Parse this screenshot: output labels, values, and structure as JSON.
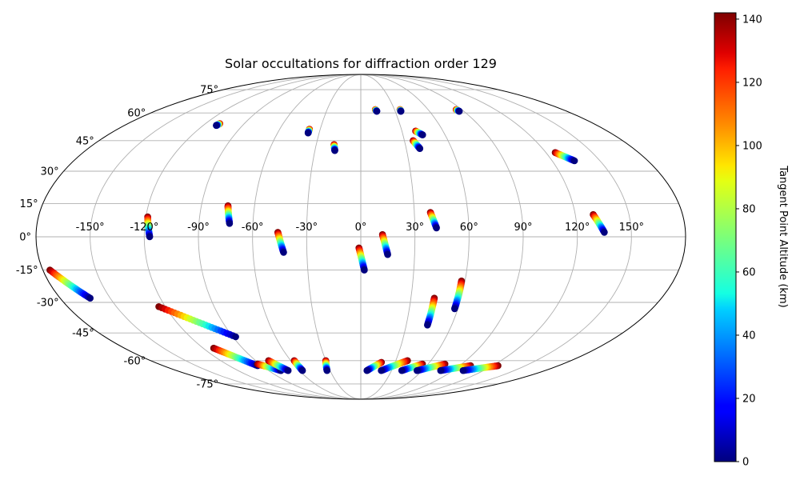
{
  "chart_data": {
    "type": "scatter",
    "projection": "mollweide",
    "title": "Solar occultations for diffraction order 129",
    "xlabel": "",
    "ylabel": "",
    "grid": true,
    "longitude_ticks": [
      -150,
      -120,
      -90,
      -60,
      -30,
      0,
      30,
      60,
      90,
      120,
      150
    ],
    "longitude_tick_labels": [
      "-150°",
      "-120°",
      "-90°",
      "-60°",
      "-30°",
      "0°",
      "30°",
      "60°",
      "90°",
      "120°",
      "150°"
    ],
    "latitude_ticks": [
      -75,
      -60,
      -45,
      -30,
      -15,
      0,
      15,
      30,
      45,
      60,
      75
    ],
    "latitude_tick_labels": [
      "-75°",
      "-60°",
      "-45°",
      "-30°",
      "-15°",
      "0°",
      "15°",
      "30°",
      "45°",
      "60°",
      "75°"
    ],
    "colorbar": {
      "label": "Tangent Point Altitude (km)",
      "range": [
        0,
        142
      ],
      "ticks": [
        0,
        20,
        40,
        60,
        80,
        100,
        120,
        140
      ],
      "tick_labels": [
        "0",
        "20",
        "40",
        "60",
        "80",
        "100",
        "120",
        "140"
      ],
      "colormap": "jet"
    },
    "occultations": [
      {
        "lon_start": -109,
        "lat_start": 54,
        "lon_end": -110,
        "lat_end": 53
      },
      {
        "lon_start": -38,
        "lat_start": 51,
        "lon_end": -38,
        "lat_end": 49
      },
      {
        "lon_start": -18,
        "lat_start": 43,
        "lon_end": -17,
        "lat_end": 40
      },
      {
        "lon_start": 13,
        "lat_start": 62,
        "lon_end": 14,
        "lat_end": 61
      },
      {
        "lon_start": 35,
        "lat_start": 62,
        "lon_end": 35,
        "lat_end": 61
      },
      {
        "lon_start": 85,
        "lat_start": 62,
        "lon_end": 86,
        "lat_end": 61
      },
      {
        "lon_start": 40,
        "lat_start": 50,
        "lon_end": 44,
        "lat_end": 48
      },
      {
        "lon_start": 36,
        "lat_start": 45,
        "lon_end": 39,
        "lat_end": 41
      },
      {
        "lon_start": 126,
        "lat_start": 39,
        "lon_end": 134,
        "lat_end": 35
      },
      {
        "lon_start": -119,
        "lat_start": 9,
        "lon_end": -117,
        "lat_end": 0
      },
      {
        "lon_start": -75,
        "lat_start": 14,
        "lon_end": -73,
        "lat_end": 6
      },
      {
        "lon_start": -46,
        "lat_start": 2,
        "lon_end": -43,
        "lat_end": -7
      },
      {
        "lon_start": -1,
        "lat_start": -5,
        "lon_end": 2,
        "lat_end": -15
      },
      {
        "lon_start": 12,
        "lat_start": 1,
        "lon_end": 15,
        "lat_end": -8
      },
      {
        "lon_start": 39,
        "lat_start": 11,
        "lon_end": 42,
        "lat_end": 4
      },
      {
        "lon_start": 130,
        "lat_start": 10,
        "lon_end": 135,
        "lat_end": 2
      },
      {
        "lon_start": 58,
        "lat_start": -20,
        "lon_end": 58,
        "lat_end": -33
      },
      {
        "lon_start": 44,
        "lat_start": -28,
        "lon_end": 44,
        "lat_end": -41
      },
      {
        "lon_start": -176,
        "lat_start": -15,
        "lon_end": -162,
        "lat_end": -28
      },
      {
        "lon_start": -124,
        "lat_start": -32,
        "lon_end": -88,
        "lat_end": -47
      },
      {
        "lon_start": -112,
        "lat_start": -53,
        "lon_end": -94,
        "lat_end": -63
      },
      {
        "lon_start": -92,
        "lat_start": -62,
        "lon_end": -78,
        "lat_end": -66
      },
      {
        "lon_start": -79,
        "lat_start": -60,
        "lon_end": -71,
        "lat_end": -66
      },
      {
        "lon_start": -57,
        "lat_start": -60,
        "lon_end": -57,
        "lat_end": -66
      },
      {
        "lon_start": -30,
        "lat_start": -60,
        "lon_end": -33,
        "lat_end": -66
      },
      {
        "lon_start": 18,
        "lat_start": -61,
        "lon_end": 6,
        "lat_end": -66
      },
      {
        "lon_start": 40,
        "lat_start": -60,
        "lon_end": 20,
        "lat_end": -66
      },
      {
        "lon_start": 55,
        "lat_start": -62,
        "lon_end": 40,
        "lat_end": -66
      },
      {
        "lon_start": 75,
        "lat_start": -62,
        "lon_end": 55,
        "lat_end": -66
      },
      {
        "lon_start": 100,
        "lat_start": -63,
        "lon_end": 78,
        "lat_end": -66
      },
      {
        "lon_start": 125,
        "lat_start": -63,
        "lon_end": 100,
        "lat_end": -66
      }
    ]
  }
}
